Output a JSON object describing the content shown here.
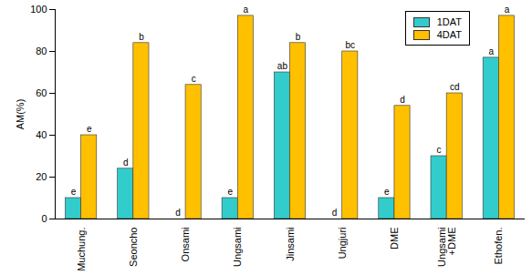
{
  "chart_data": {
    "type": "bar",
    "ylabel": "AM(%)",
    "categories": [
      "Muchung.",
      "Seoncho",
      "Onsami",
      "Ungsami",
      "Jinsami",
      "Ungjuri",
      "DME",
      "Ungsami\n+DME",
      "Ethofen."
    ],
    "series": [
      {
        "name": "1DAT",
        "color": "#33cccc",
        "values": [
          10,
          24,
          0,
          10,
          70,
          0,
          10,
          30,
          77
        ],
        "annotations": [
          "e",
          "d",
          "d",
          "e",
          "ab",
          "d",
          "e",
          "c",
          "a"
        ]
      },
      {
        "name": "4DAT",
        "color": "#ffc000",
        "values": [
          40,
          84,
          64,
          97,
          84,
          80,
          54,
          60,
          97
        ],
        "annotations": [
          "e",
          "b",
          "c",
          "a",
          "b",
          "bc",
          "d",
          "cd",
          "a"
        ]
      }
    ],
    "ylim": [
      0,
      100
    ],
    "yticks": [
      0,
      20,
      40,
      60,
      80,
      100
    ],
    "grid": false,
    "legend": "upper right"
  }
}
